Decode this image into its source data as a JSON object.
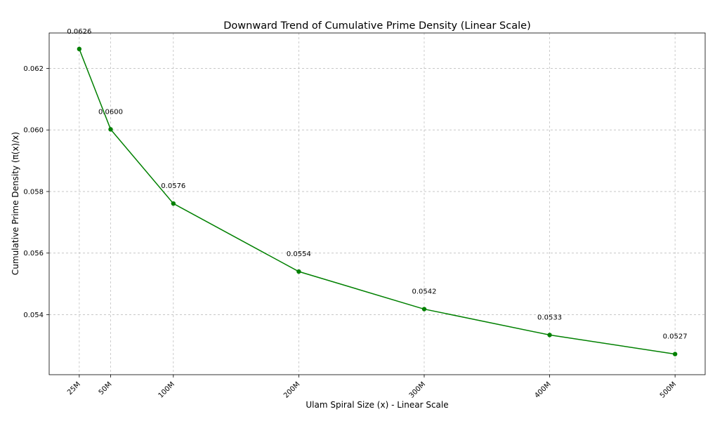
{
  "chart_data": {
    "type": "line",
    "title": "Downward Trend of Cumulative Prime Density (Linear Scale)",
    "xlabel": "Ulam Spiral Size (x) - Linear Scale",
    "ylabel": "Cumulative Prime Density (π(x)/x)",
    "x": [
      25,
      50,
      100,
      200,
      300,
      400,
      500
    ],
    "x_tick_labels": [
      "25M",
      "50M",
      "100M",
      "200M",
      "300M",
      "400M",
      "500M"
    ],
    "y_ticks": [
      0.054,
      0.056,
      0.058,
      0.06,
      0.062
    ],
    "y_tick_labels": [
      "0.054",
      "0.056",
      "0.058",
      "0.060",
      "0.062"
    ],
    "series": [
      {
        "values": [
          0.06263,
          0.06002,
          0.05761,
          0.0554,
          0.05418,
          0.05334,
          0.05272
        ],
        "labels": [
          "0.0626",
          "0.0600",
          "0.0576",
          "0.0554",
          "0.0542",
          "0.0533",
          "0.0527"
        ],
        "color": "#008000",
        "marker": "circle"
      }
    ],
    "xlim": [
      1,
      524
    ],
    "ylim": [
      0.05205,
      0.06315
    ],
    "grid": true,
    "legend": false
  }
}
